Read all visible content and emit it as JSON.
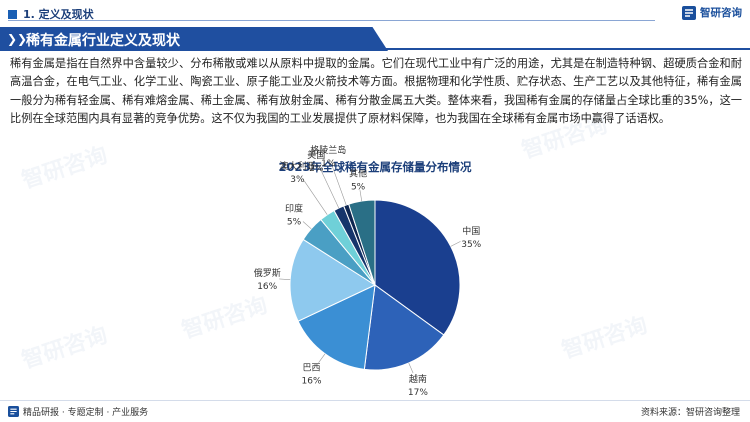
{
  "header": {
    "section": "1. 定义及现状",
    "brand": "智研咨询"
  },
  "banner": {
    "title": "稀有金属行业定义及现状"
  },
  "body": {
    "paragraph": "稀有金属是指在自然界中含量较少、分布稀散或难以从原料中提取的金属。它们在现代工业中有广泛的用途，尤其是在制造特种钢、超硬质合金和耐高温合金，在电气工业、化学工业、陶瓷工业、原子能工业及火箭技术等方面。根据物理和化学性质、贮存状态、生产工艺以及其他特征，稀有金属一般分为稀有轻金属、稀有难熔金属、稀土金属、稀有放射金属、稀有分散金属五大类。整体来看，我国稀有金属的存储量占全球比重的35%，这一比例在全球范围内具有显著的竞争优势。这不仅为我国的工业发展提供了原材料保障，也为我国在全球稀有金属市场中赢得了话语权。"
  },
  "chart_data": {
    "type": "pie",
    "title": "2023年全球稀有金属存储量分布情况",
    "slices": [
      {
        "name": "中国",
        "value": 35,
        "label": "35%",
        "color": "#1a3f8f"
      },
      {
        "name": "越南",
        "value": 17,
        "label": "17%",
        "color": "#2d62b8"
      },
      {
        "name": "巴西",
        "value": 16,
        "label": "16%",
        "color": "#3b8fd4"
      },
      {
        "name": "俄罗斯",
        "value": 16,
        "label": "16%",
        "color": "#8ec9ee"
      },
      {
        "name": "印度",
        "value": 5,
        "label": "5%",
        "color": "#4a9fc4"
      },
      {
        "name": "澳大利亚",
        "value": 3,
        "label": "3%",
        "color": "#6fd0d8"
      },
      {
        "name": "美国",
        "value": 2,
        "label": "2%",
        "color": "#16356b"
      },
      {
        "name": "格陵兰岛",
        "value": 1,
        "label": "1%",
        "color": "#0e2650"
      },
      {
        "name": "其他",
        "value": 5,
        "label": "5%",
        "color": "#2a6f86"
      }
    ]
  },
  "footer": {
    "left": "精品研报 · 专题定制 · 产业服务",
    "right": "资料来源：智研咨询整理"
  }
}
